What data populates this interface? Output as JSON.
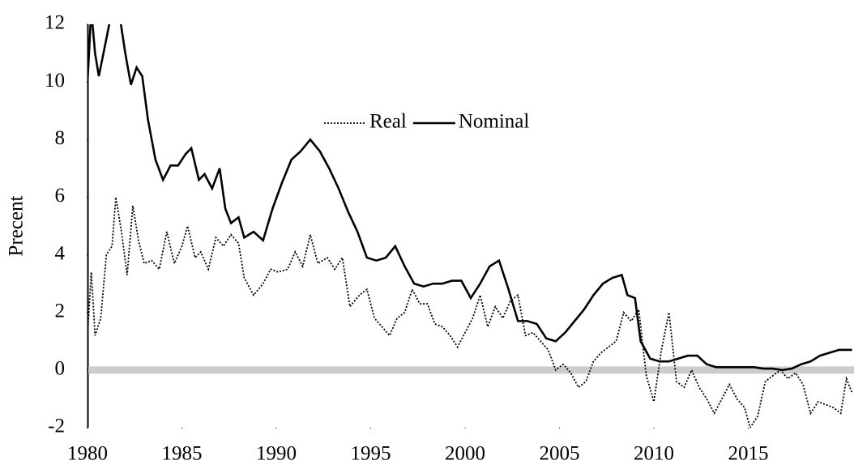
{
  "chart_data": {
    "type": "line",
    "ylabel": "Precent",
    "xlim": [
      1980,
      2020.6
    ],
    "xticks": [
      1980,
      1985,
      1990,
      1995,
      2000,
      2005,
      2010,
      2015
    ],
    "ylim": [
      -2,
      12
    ],
    "yticks": [
      -2,
      0,
      2,
      4,
      6,
      8,
      10,
      12
    ],
    "grid": false,
    "legend": "top",
    "series": [
      {
        "name": "Real",
        "color": "#000000",
        "style": "dotted",
        "x": [
          1980.0,
          1980.2,
          1980.4,
          1980.7,
          1981.0,
          1981.3,
          1981.5,
          1981.8,
          1982.1,
          1982.4,
          1982.7,
          1983.0,
          1983.4,
          1983.8,
          1984.2,
          1984.6,
          1985.0,
          1985.3,
          1985.7,
          1986.0,
          1986.4,
          1986.8,
          1987.2,
          1987.6,
          1988.0,
          1988.3,
          1988.8,
          1989.3,
          1989.7,
          1990.1,
          1990.6,
          1991.0,
          1991.4,
          1991.8,
          1992.2,
          1992.7,
          1993.1,
          1993.5,
          1993.9,
          1994.4,
          1994.8,
          1995.2,
          1995.6,
          1996.0,
          1996.4,
          1996.8,
          1997.2,
          1997.6,
          1998.0,
          1998.4,
          1998.8,
          1999.2,
          1999.6,
          2000.0,
          2000.4,
          2000.8,
          2001.2,
          2001.6,
          2002.0,
          2002.4,
          2002.8,
          2003.2,
          2003.6,
          2004.0,
          2004.4,
          2004.8,
          2005.2,
          2005.6,
          2006.0,
          2006.4,
          2006.8,
          2007.2,
          2007.6,
          2008.0,
          2008.4,
          2008.8,
          2009.2,
          2009.6,
          2010.0,
          2010.4,
          2010.8,
          2011.2,
          2011.6,
          2012.0,
          2012.4,
          2012.8,
          2013.2,
          2013.6,
          2014.0,
          2014.4,
          2014.8,
          2015.1,
          2015.5,
          2015.9,
          2016.3,
          2016.7,
          2017.1,
          2017.5,
          2017.9,
          2018.3,
          2018.7,
          2019.1,
          2019.5,
          2019.9,
          2020.2,
          2020.5
        ],
        "values": [
          1.2,
          3.4,
          1.2,
          1.8,
          4.0,
          4.3,
          6.0,
          4.8,
          3.3,
          5.7,
          4.5,
          3.7,
          3.8,
          3.5,
          4.8,
          3.7,
          4.3,
          5.0,
          3.9,
          4.1,
          3.5,
          4.6,
          4.3,
          4.7,
          4.4,
          3.2,
          2.6,
          3.0,
          3.5,
          3.4,
          3.5,
          4.1,
          3.6,
          4.7,
          3.7,
          3.9,
          3.5,
          3.9,
          2.2,
          2.6,
          2.8,
          1.8,
          1.5,
          1.2,
          1.8,
          2.0,
          2.8,
          2.3,
          2.3,
          1.6,
          1.5,
          1.2,
          0.8,
          1.3,
          1.8,
          2.6,
          1.5,
          2.2,
          1.8,
          2.4,
          2.6,
          1.2,
          1.3,
          1.0,
          0.7,
          0.0,
          0.2,
          -0.1,
          -0.6,
          -0.4,
          0.3,
          0.6,
          0.8,
          1.0,
          2.0,
          1.7,
          2.1,
          -0.2,
          -1.1,
          0.7,
          2.0,
          -0.4,
          -0.6,
          0.0,
          -0.6,
          -1.0,
          -1.5,
          -1.0,
          -0.5,
          -1.0,
          -1.3,
          -2.0,
          -1.6,
          -0.4,
          -0.2,
          0.0,
          -0.3,
          -0.1,
          -0.5,
          -1.5,
          -1.1,
          -1.2,
          -1.3,
          -1.5,
          -0.3,
          -0.8
        ]
      },
      {
        "name": "Nominal",
        "color": "#000000",
        "style": "solid",
        "x": [
          1980.0,
          1980.2,
          1980.4,
          1980.6,
          1981.0,
          1981.3,
          1981.7,
          1982.0,
          1982.3,
          1982.6,
          1982.9,
          1983.2,
          1983.6,
          1984.0,
          1984.4,
          1984.8,
          1985.2,
          1985.5,
          1985.9,
          1986.2,
          1986.6,
          1987.0,
          1987.3,
          1987.6,
          1988.0,
          1988.3,
          1988.8,
          1989.3,
          1989.8,
          1990.3,
          1990.8,
          1991.3,
          1991.8,
          1992.3,
          1992.8,
          1993.3,
          1993.8,
          1994.3,
          1994.8,
          1995.3,
          1995.8,
          1996.3,
          1996.8,
          1997.3,
          1997.8,
          1998.3,
          1998.8,
          1999.3,
          1999.8,
          2000.3,
          2000.8,
          2001.3,
          2001.8,
          2002.3,
          2002.8,
          2003.3,
          2003.8,
          2004.3,
          2004.8,
          2005.3,
          2005.8,
          2006.3,
          2006.8,
          2007.3,
          2007.8,
          2008.3,
          2008.6,
          2009.0,
          2009.3,
          2009.8,
          2010.3,
          2010.8,
          2011.3,
          2011.8,
          2012.3,
          2012.8,
          2013.3,
          2013.8,
          2014.3,
          2014.8,
          2015.3,
          2015.8,
          2016.3,
          2016.8,
          2017.3,
          2017.8,
          2018.3,
          2018.8,
          2019.3,
          2019.8,
          2020.5
        ],
        "values": [
          10.0,
          12.5,
          11.0,
          10.2,
          11.5,
          12.5,
          12.3,
          11.0,
          9.9,
          10.5,
          10.2,
          8.7,
          7.3,
          6.6,
          7.1,
          7.1,
          7.5,
          7.7,
          6.6,
          6.8,
          6.3,
          7.0,
          5.6,
          5.1,
          5.3,
          4.6,
          4.8,
          4.5,
          5.6,
          6.5,
          7.3,
          7.6,
          8.0,
          7.6,
          7.0,
          6.3,
          5.5,
          4.8,
          3.9,
          3.8,
          3.9,
          4.3,
          3.6,
          3.0,
          2.9,
          3.0,
          3.0,
          3.1,
          3.1,
          2.5,
          3.0,
          3.6,
          3.8,
          2.8,
          1.7,
          1.7,
          1.6,
          1.1,
          1.0,
          1.3,
          1.7,
          2.1,
          2.6,
          3.0,
          3.2,
          3.3,
          2.6,
          2.5,
          1.0,
          0.4,
          0.3,
          0.3,
          0.4,
          0.5,
          0.5,
          0.2,
          0.1,
          0.1,
          0.1,
          0.1,
          0.1,
          0.05,
          0.05,
          0.0,
          0.05,
          0.2,
          0.3,
          0.5,
          0.6,
          0.7,
          0.7
        ]
      }
    ]
  }
}
